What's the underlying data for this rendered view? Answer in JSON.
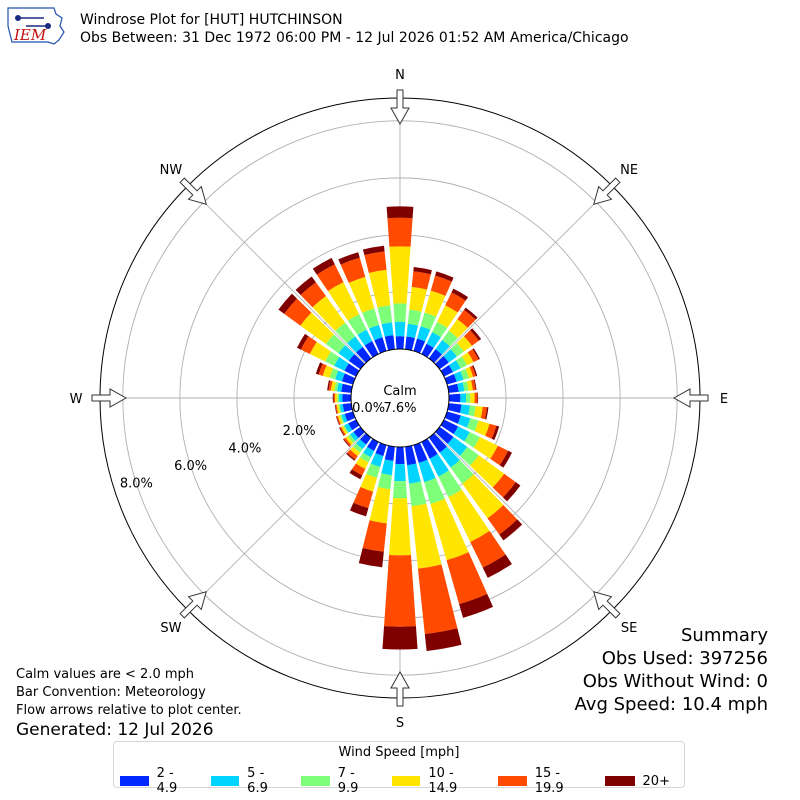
{
  "header": {
    "title": "Windrose Plot for [HUT] HUTCHINSON",
    "subtitle": "Obs Between: 31 Dec 1972 06:00 PM - 12 Jul 2026 01:52 AM America/Chicago",
    "logo_text": "IEM"
  },
  "notes": {
    "calm_note": "Calm values are < 2.0 mph",
    "bar_convention": "Bar Convention: Meteorology",
    "flow_arrows": "Flow arrows relative to plot center.",
    "generated": "Generated: 12 Jul 2026"
  },
  "summary": {
    "title": "Summary",
    "obs_used": "Obs Used: 397256",
    "obs_without_wind": "Obs Without Wind: 0",
    "avg_speed": "Avg Speed: 10.4 mph"
  },
  "legend": {
    "title": "Wind Speed [mph]",
    "items": [
      {
        "label": "2 - 4.9",
        "color": "#0028ff"
      },
      {
        "label": "5 - 6.9",
        "color": "#00d4ff"
      },
      {
        "label": "7 - 9.9",
        "color": "#7dff7a"
      },
      {
        "label": "10 - 14.9",
        "color": "#ffe500"
      },
      {
        "label": "15 - 19.9",
        "color": "#ff4a00"
      },
      {
        "label": "20+",
        "color": "#800000"
      }
    ]
  },
  "chart_data": {
    "type": "windrose",
    "calm_label": "Calm",
    "calm_value": "7.6%",
    "radial_ticks": [
      "0.0%",
      "2.0%",
      "4.0%",
      "6.0%",
      "8.0%"
    ],
    "radial_values": [
      0,
      2,
      4,
      6,
      8
    ],
    "r_max": 8.8,
    "compass_labels": [
      {
        "label": "N",
        "deg": 0
      },
      {
        "label": "NE",
        "deg": 45
      },
      {
        "label": "E",
        "deg": 90
      },
      {
        "label": "SE",
        "deg": 135
      },
      {
        "label": "S",
        "deg": 180
      },
      {
        "label": "SW",
        "deg": 225
      },
      {
        "label": "W",
        "deg": 270
      },
      {
        "label": "NW",
        "deg": 315
      }
    ],
    "bins": [
      "2 - 4.9",
      "5 - 6.9",
      "7 - 9.9",
      "10 - 14.9",
      "15 - 19.9",
      "20+"
    ],
    "directions_deg": [
      0,
      10,
      20,
      30,
      40,
      50,
      60,
      70,
      80,
      90,
      100,
      110,
      120,
      130,
      140,
      150,
      160,
      170,
      180,
      190,
      200,
      210,
      220,
      230,
      240,
      250,
      260,
      270,
      280,
      290,
      300,
      310,
      320,
      330,
      340,
      350
    ],
    "cumulative_pct": [
      [
        0.45,
        0.95,
        1.6,
        3.6,
        4.6,
        5.0
      ],
      [
        0.45,
        0.9,
        1.4,
        2.2,
        2.75,
        2.9
      ],
      [
        0.45,
        0.9,
        1.4,
        2.2,
        2.75,
        2.9
      ],
      [
        0.4,
        0.85,
        1.25,
        1.9,
        2.4,
        2.55
      ],
      [
        0.4,
        0.8,
        1.2,
        1.7,
        2.1,
        2.2
      ],
      [
        0.4,
        0.75,
        1.05,
        1.4,
        1.7,
        1.8
      ],
      [
        0.35,
        0.65,
        0.9,
        1.15,
        1.35,
        1.4
      ],
      [
        0.35,
        0.6,
        0.8,
        0.95,
        1.05,
        1.1
      ],
      [
        0.35,
        0.55,
        0.7,
        0.85,
        0.95,
        0.98
      ],
      [
        0.4,
        0.6,
        0.75,
        0.9,
        1.0,
        1.02
      ],
      [
        0.45,
        0.75,
        0.95,
        1.2,
        1.35,
        1.4
      ],
      [
        0.5,
        0.85,
        1.15,
        1.55,
        1.8,
        1.9
      ],
      [
        0.55,
        1.0,
        1.4,
        2.1,
        2.5,
        2.65
      ],
      [
        0.6,
        1.2,
        1.7,
        2.8,
        3.3,
        3.5
      ],
      [
        0.65,
        1.3,
        2.0,
        3.5,
        4.2,
        4.45
      ],
      [
        0.65,
        1.35,
        2.15,
        3.9,
        4.9,
        5.3
      ],
      [
        0.65,
        1.35,
        2.15,
        4.2,
        5.8,
        6.3
      ],
      [
        0.65,
        1.3,
        2.1,
        4.3,
        6.6,
        7.2
      ],
      [
        0.6,
        1.2,
        1.8,
        3.8,
        6.3,
        7.1
      ],
      [
        0.5,
        1.0,
        1.5,
        2.7,
        3.7,
        4.25
      ],
      [
        0.4,
        0.8,
        1.2,
        1.7,
        2.3,
        2.6
      ],
      [
        0.35,
        0.6,
        0.8,
        1.05,
        1.3,
        1.45
      ],
      [
        0.3,
        0.5,
        0.65,
        0.8,
        0.95,
        1.0
      ],
      [
        0.3,
        0.45,
        0.55,
        0.65,
        0.72,
        0.75
      ],
      [
        0.3,
        0.45,
        0.5,
        0.58,
        0.63,
        0.66
      ],
      [
        0.3,
        0.42,
        0.48,
        0.55,
        0.6,
        0.62
      ],
      [
        0.3,
        0.4,
        0.45,
        0.52,
        0.56,
        0.58
      ],
      [
        0.3,
        0.42,
        0.48,
        0.56,
        0.61,
        0.64
      ],
      [
        0.35,
        0.5,
        0.6,
        0.72,
        0.8,
        0.85
      ],
      [
        0.4,
        0.65,
        0.85,
        1.1,
        1.25,
        1.35
      ],
      [
        0.45,
        0.85,
        1.2,
        1.8,
        2.15,
        2.3
      ],
      [
        0.5,
        0.95,
        1.5,
        2.6,
        3.3,
        3.55
      ],
      [
        0.5,
        0.95,
        1.55,
        2.7,
        3.3,
        3.55
      ],
      [
        0.5,
        0.95,
        1.55,
        2.8,
        3.5,
        3.75
      ],
      [
        0.5,
        0.95,
        1.55,
        2.7,
        3.4,
        3.6
      ],
      [
        0.5,
        0.95,
        1.55,
        2.8,
        3.45,
        3.65
      ]
    ]
  }
}
